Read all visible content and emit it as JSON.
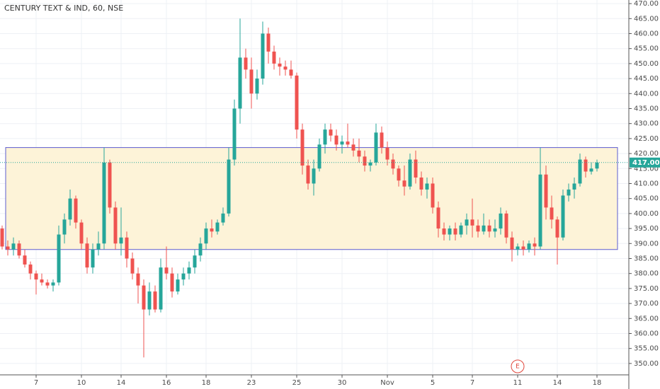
{
  "chart_data": {
    "type": "candlestick",
    "title": "CENTURY TEXT & IND, 60, NSE",
    "up_color": "#26a69a",
    "down_color": "#ef5350",
    "grid": true,
    "ylim": [
      346.2,
      471.2
    ],
    "yticks": [
      {
        "value": 350,
        "label": "350.00"
      },
      {
        "value": 355,
        "label": "355.00"
      },
      {
        "value": 360,
        "label": "360.00"
      },
      {
        "value": 365,
        "label": "365.00"
      },
      {
        "value": 370,
        "label": "370.00"
      },
      {
        "value": 375,
        "label": "375.00"
      },
      {
        "value": 380,
        "label": "380.00"
      },
      {
        "value": 385,
        "label": "385.00"
      },
      {
        "value": 390,
        "label": "390.00"
      },
      {
        "value": 395,
        "label": "395.00"
      },
      {
        "value": 400,
        "label": "400.00"
      },
      {
        "value": 405,
        "label": "405.00"
      },
      {
        "value": 410,
        "label": "410.00"
      },
      {
        "value": 415,
        "label": "415.00"
      },
      {
        "value": 420,
        "label": "420.00"
      },
      {
        "value": 425,
        "label": "425.00"
      },
      {
        "value": 430,
        "label": "430.00"
      },
      {
        "value": 435,
        "label": "435.00"
      },
      {
        "value": 440,
        "label": "440.00"
      },
      {
        "value": 445,
        "label": "445.00"
      },
      {
        "value": 450,
        "label": "450.00"
      },
      {
        "value": 455,
        "label": "455.00"
      },
      {
        "value": 460,
        "label": "460.00"
      },
      {
        "value": 465,
        "label": "465.00"
      },
      {
        "value": 470,
        "label": "470.00"
      }
    ],
    "categories": [
      null,
      null,
      null,
      null,
      null,
      null,
      "7",
      null,
      null,
      null,
      null,
      null,
      null,
      null,
      "10",
      null,
      null,
      null,
      null,
      null,
      null,
      "14",
      null,
      null,
      null,
      null,
      null,
      null,
      null,
      "16",
      null,
      null,
      null,
      null,
      null,
      null,
      "18",
      null,
      null,
      null,
      null,
      null,
      null,
      null,
      "23",
      null,
      null,
      null,
      null,
      null,
      null,
      null,
      "25",
      null,
      null,
      null,
      null,
      null,
      null,
      null,
      "30",
      null,
      null,
      null,
      null,
      null,
      null,
      null,
      "Nov",
      null,
      null,
      null,
      null,
      null,
      null,
      null,
      "5",
      null,
      null,
      null,
      null,
      null,
      null,
      "7",
      null,
      null,
      null,
      null,
      null,
      null,
      null,
      "11",
      null,
      null,
      null,
      null,
      null,
      null,
      "14",
      null,
      null,
      null,
      null,
      null,
      null,
      "18"
    ],
    "ohlc": [
      [
        395,
        396,
        388,
        389
      ],
      [
        389,
        391,
        386,
        388
      ],
      [
        388,
        392,
        386,
        390
      ],
      [
        390,
        391,
        385,
        386
      ],
      [
        386,
        388,
        382,
        383
      ],
      [
        383,
        384,
        378,
        380
      ],
      [
        380,
        381,
        373,
        378
      ],
      [
        378,
        380,
        376,
        377
      ],
      [
        377,
        378,
        375,
        376
      ],
      [
        376,
        378,
        374,
        377
      ],
      [
        377,
        396,
        376,
        393
      ],
      [
        393,
        400,
        390,
        398
      ],
      [
        398,
        408,
        396,
        405
      ],
      [
        405,
        406,
        395,
        397
      ],
      [
        397,
        398,
        388,
        390
      ],
      [
        390,
        392,
        380,
        382
      ],
      [
        382,
        390,
        380,
        388
      ],
      [
        388,
        394,
        386,
        390
      ],
      [
        390,
        422,
        388,
        417
      ],
      [
        417,
        418,
        400,
        402
      ],
      [
        402,
        404,
        388,
        390
      ],
      [
        390,
        402,
        386,
        392
      ],
      [
        392,
        394,
        382,
        385
      ],
      [
        385,
        387,
        378,
        380
      ],
      [
        380,
        382,
        370,
        376
      ],
      [
        376,
        378,
        352,
        368
      ],
      [
        368,
        377,
        366,
        374
      ],
      [
        374,
        376,
        367,
        368
      ],
      [
        368,
        385,
        367,
        382
      ],
      [
        382,
        389,
        378,
        380
      ],
      [
        380,
        382,
        372,
        374
      ],
      [
        374,
        380,
        373,
        378
      ],
      [
        378,
        382,
        376,
        380
      ],
      [
        380,
        384,
        378,
        382
      ],
      [
        382,
        388,
        380,
        386
      ],
      [
        386,
        392,
        384,
        390
      ],
      [
        390,
        397,
        388,
        395
      ],
      [
        395,
        398,
        392,
        394
      ],
      [
        394,
        398,
        393,
        397
      ],
      [
        397,
        402,
        396,
        400
      ],
      [
        400,
        422,
        399,
        418
      ],
      [
        418,
        438,
        416,
        435
      ],
      [
        435,
        465,
        430,
        452
      ],
      [
        452,
        455,
        445,
        448
      ],
      [
        448,
        452,
        435,
        440
      ],
      [
        440,
        448,
        438,
        445
      ],
      [
        445,
        464,
        443,
        460
      ],
      [
        460,
        462,
        450,
        454
      ],
      [
        454,
        456,
        448,
        450
      ],
      [
        450,
        452,
        446,
        449
      ],
      [
        449,
        451,
        446,
        448
      ],
      [
        448,
        451,
        445,
        446
      ],
      [
        446,
        447,
        425,
        428
      ],
      [
        428,
        430,
        413,
        416
      ],
      [
        416,
        418,
        408,
        410
      ],
      [
        410,
        418,
        406,
        415
      ],
      [
        415,
        425,
        414,
        423
      ],
      [
        423,
        430,
        420,
        428
      ],
      [
        428,
        430,
        424,
        426
      ],
      [
        426,
        428,
        421,
        423
      ],
      [
        423,
        426,
        420,
        424
      ],
      [
        424,
        430,
        422,
        423
      ],
      [
        423,
        425,
        419,
        421
      ],
      [
        421,
        425,
        417,
        419
      ],
      [
        419,
        421,
        414,
        416
      ],
      [
        416,
        418,
        414,
        417
      ],
      [
        417,
        430,
        416,
        427
      ],
      [
        427,
        429,
        420,
        422
      ],
      [
        422,
        424,
        416,
        418
      ],
      [
        418,
        420,
        413,
        415
      ],
      [
        415,
        416,
        409,
        411
      ],
      [
        411,
        416,
        406,
        409
      ],
      [
        409,
        420,
        408,
        418
      ],
      [
        418,
        421,
        410,
        412
      ],
      [
        412,
        414,
        406,
        408
      ],
      [
        408,
        412,
        405,
        410
      ],
      [
        410,
        412,
        400,
        402
      ],
      [
        402,
        404,
        392,
        395
      ],
      [
        395,
        397,
        391,
        393
      ],
      [
        393,
        396,
        391,
        395
      ],
      [
        395,
        397,
        391,
        393
      ],
      [
        393,
        397,
        392,
        396
      ],
      [
        396,
        400,
        393,
        398
      ],
      [
        398,
        405,
        392,
        396
      ],
      [
        396,
        398,
        392,
        394
      ],
      [
        394,
        400,
        393,
        396
      ],
      [
        396,
        398,
        392,
        394
      ],
      [
        394,
        398,
        392,
        395
      ],
      [
        395,
        402,
        393,
        400
      ],
      [
        400,
        401,
        390,
        392
      ],
      [
        392,
        394,
        384,
        388
      ],
      [
        388,
        390,
        386,
        389
      ],
      [
        389,
        391,
        386,
        388
      ],
      [
        388,
        391,
        387,
        390
      ],
      [
        390,
        392,
        386,
        389
      ],
      [
        389,
        422,
        388,
        413
      ],
      [
        413,
        416,
        398,
        402
      ],
      [
        402,
        406,
        395,
        398
      ],
      [
        398,
        399,
        383,
        392
      ],
      [
        392,
        408,
        391,
        406
      ],
      [
        406,
        410,
        404,
        408
      ],
      [
        408,
        412,
        405,
        410
      ],
      [
        410,
        420,
        409,
        418
      ],
      [
        418,
        419,
        412,
        414
      ],
      [
        414,
        417,
        413,
        415
      ],
      [
        415,
        418,
        414,
        417
      ]
    ],
    "box": {
      "top": 422,
      "bottom": 388,
      "fill": "#fdf3d8",
      "stroke": "#5c5ccf"
    },
    "last_price": {
      "value": 417,
      "label": "417.00",
      "color": "#26a69a"
    },
    "event_marker": "E"
  }
}
